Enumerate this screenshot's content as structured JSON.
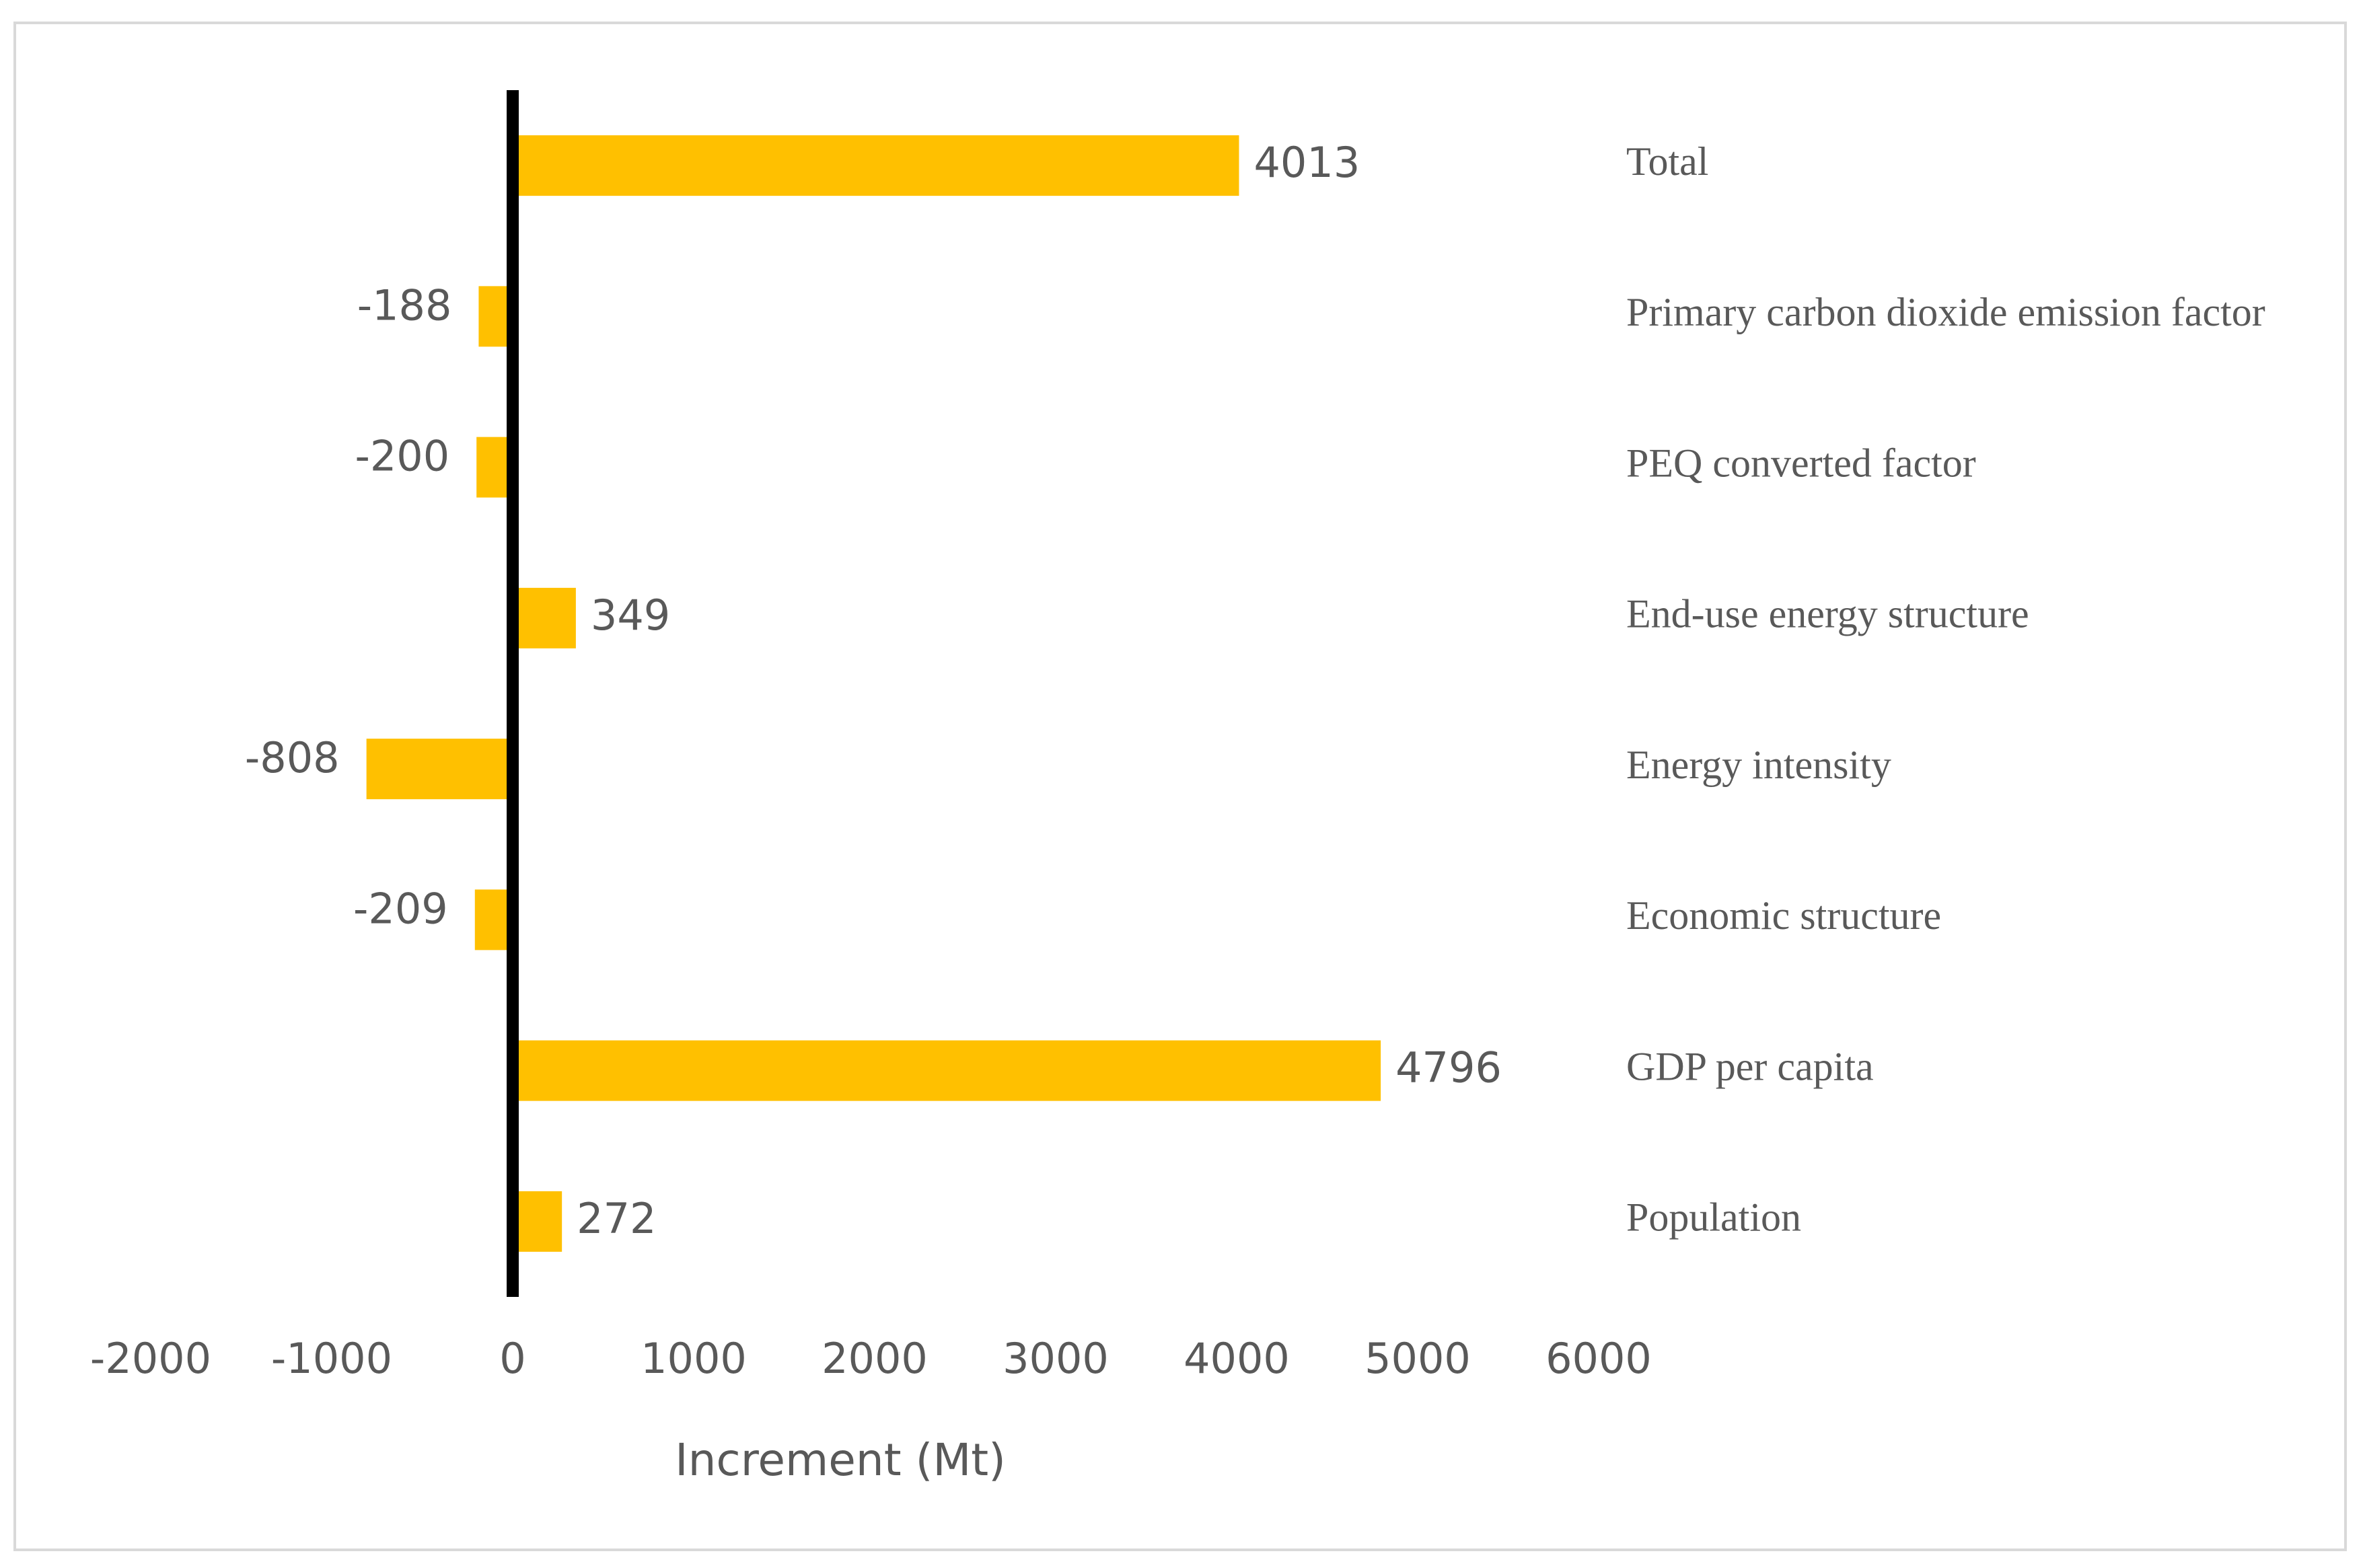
{
  "chart_data": {
    "type": "bar",
    "orientation": "horizontal",
    "x_label": "Increment (Mt)",
    "categories": [
      "Total",
      "Primary carbon dioxide emission factor",
      "PEQ converted factor",
      "End-use energy structure",
      "Energy intensity",
      "Economic structure",
      "GDP per capita",
      "Population"
    ],
    "values": [
      4013,
      -188,
      -200,
      349,
      -808,
      -209,
      4796,
      272
    ],
    "color": "#ffc000",
    "xlim": [
      -2000,
      6000
    ],
    "xticks": [
      -2000,
      -1000,
      0,
      1000,
      2000,
      3000,
      4000,
      5000,
      6000
    ],
    "grid": false
  }
}
